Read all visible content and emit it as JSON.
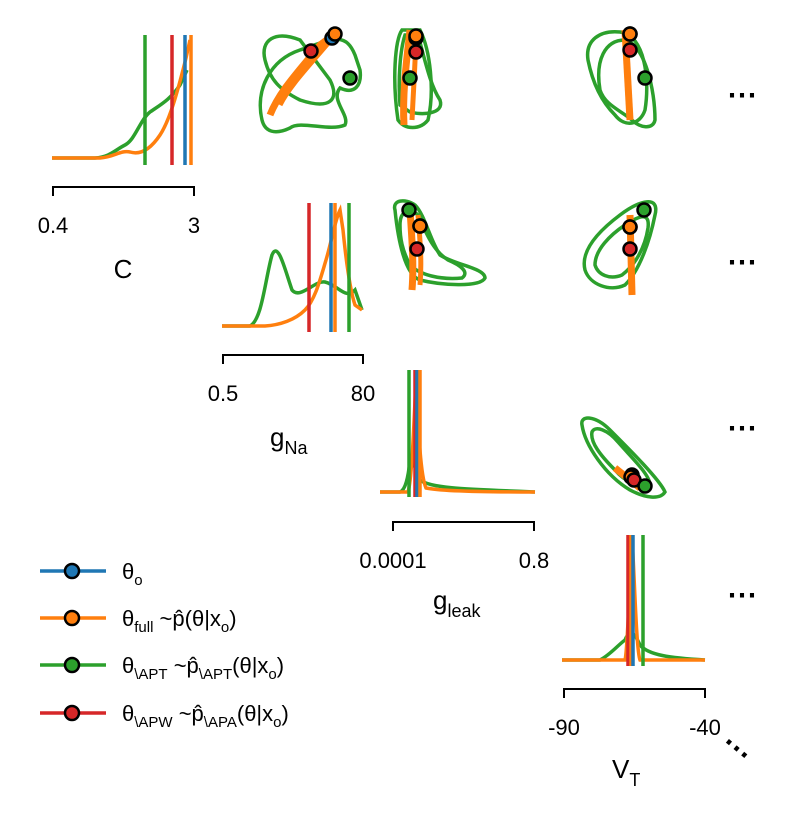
{
  "chart_data": {
    "type": "pairplot",
    "colors": {
      "theta_o": "#1f77b4",
      "theta_full": "#ff7f0e",
      "theta_apt": "#2ca02c",
      "theta_apw": "#d62728"
    },
    "parameters": [
      {
        "name": "C",
        "sub": "",
        "range_labels": [
          "0.4",
          "3"
        ]
      },
      {
        "name": "g",
        "sub": "Na",
        "range_labels": [
          "0.5",
          "80"
        ]
      },
      {
        "name": "g",
        "sub": "leak",
        "range_labels": [
          "0.0001",
          "0.8"
        ]
      },
      {
        "name": "V",
        "sub": "T",
        "range_labels": [
          "-90",
          "-40"
        ]
      }
    ],
    "marginal_lines": {
      "C": {
        "theta_o": 0.92,
        "theta_full": 0.96,
        "theta_apt": 0.64,
        "theta_apw": 0.83
      },
      "gNa": {
        "theta_o": 0.78,
        "theta_full": 0.8,
        "theta_apt": 0.88,
        "theta_apw": 0.6
      },
      "gleak": {
        "theta_o": 0.18,
        "theta_full": 0.19,
        "theta_apt": 0.13,
        "theta_apw": 0.17
      },
      "VT": {
        "theta_o": 0.48,
        "theta_full": 0.47,
        "theta_apt": 0.57,
        "theta_apw": 0.46
      }
    },
    "ellipsis": "⋯",
    "legend": [
      {
        "key": "theta_o",
        "main": "θ",
        "sub": "o",
        "rest": ""
      },
      {
        "key": "theta_full",
        "main": "θ",
        "sub": "full",
        "rest": " ~p̂(θ|x",
        "sub2": "o",
        "end": ")"
      },
      {
        "key": "theta_apt",
        "main": "θ",
        "sub": "\\APT",
        "rest": " ~p̂",
        "sub2": "\\APT",
        "rest2": "(θ|x",
        "sub3": "o",
        "end": ")"
      },
      {
        "key": "theta_apw",
        "main": "θ",
        "sub": "\\APW",
        "rest": " ~p̂",
        "sub2": "\\APA",
        "rest2": "(θ|x",
        "sub3": "o",
        "end": ")"
      }
    ]
  }
}
